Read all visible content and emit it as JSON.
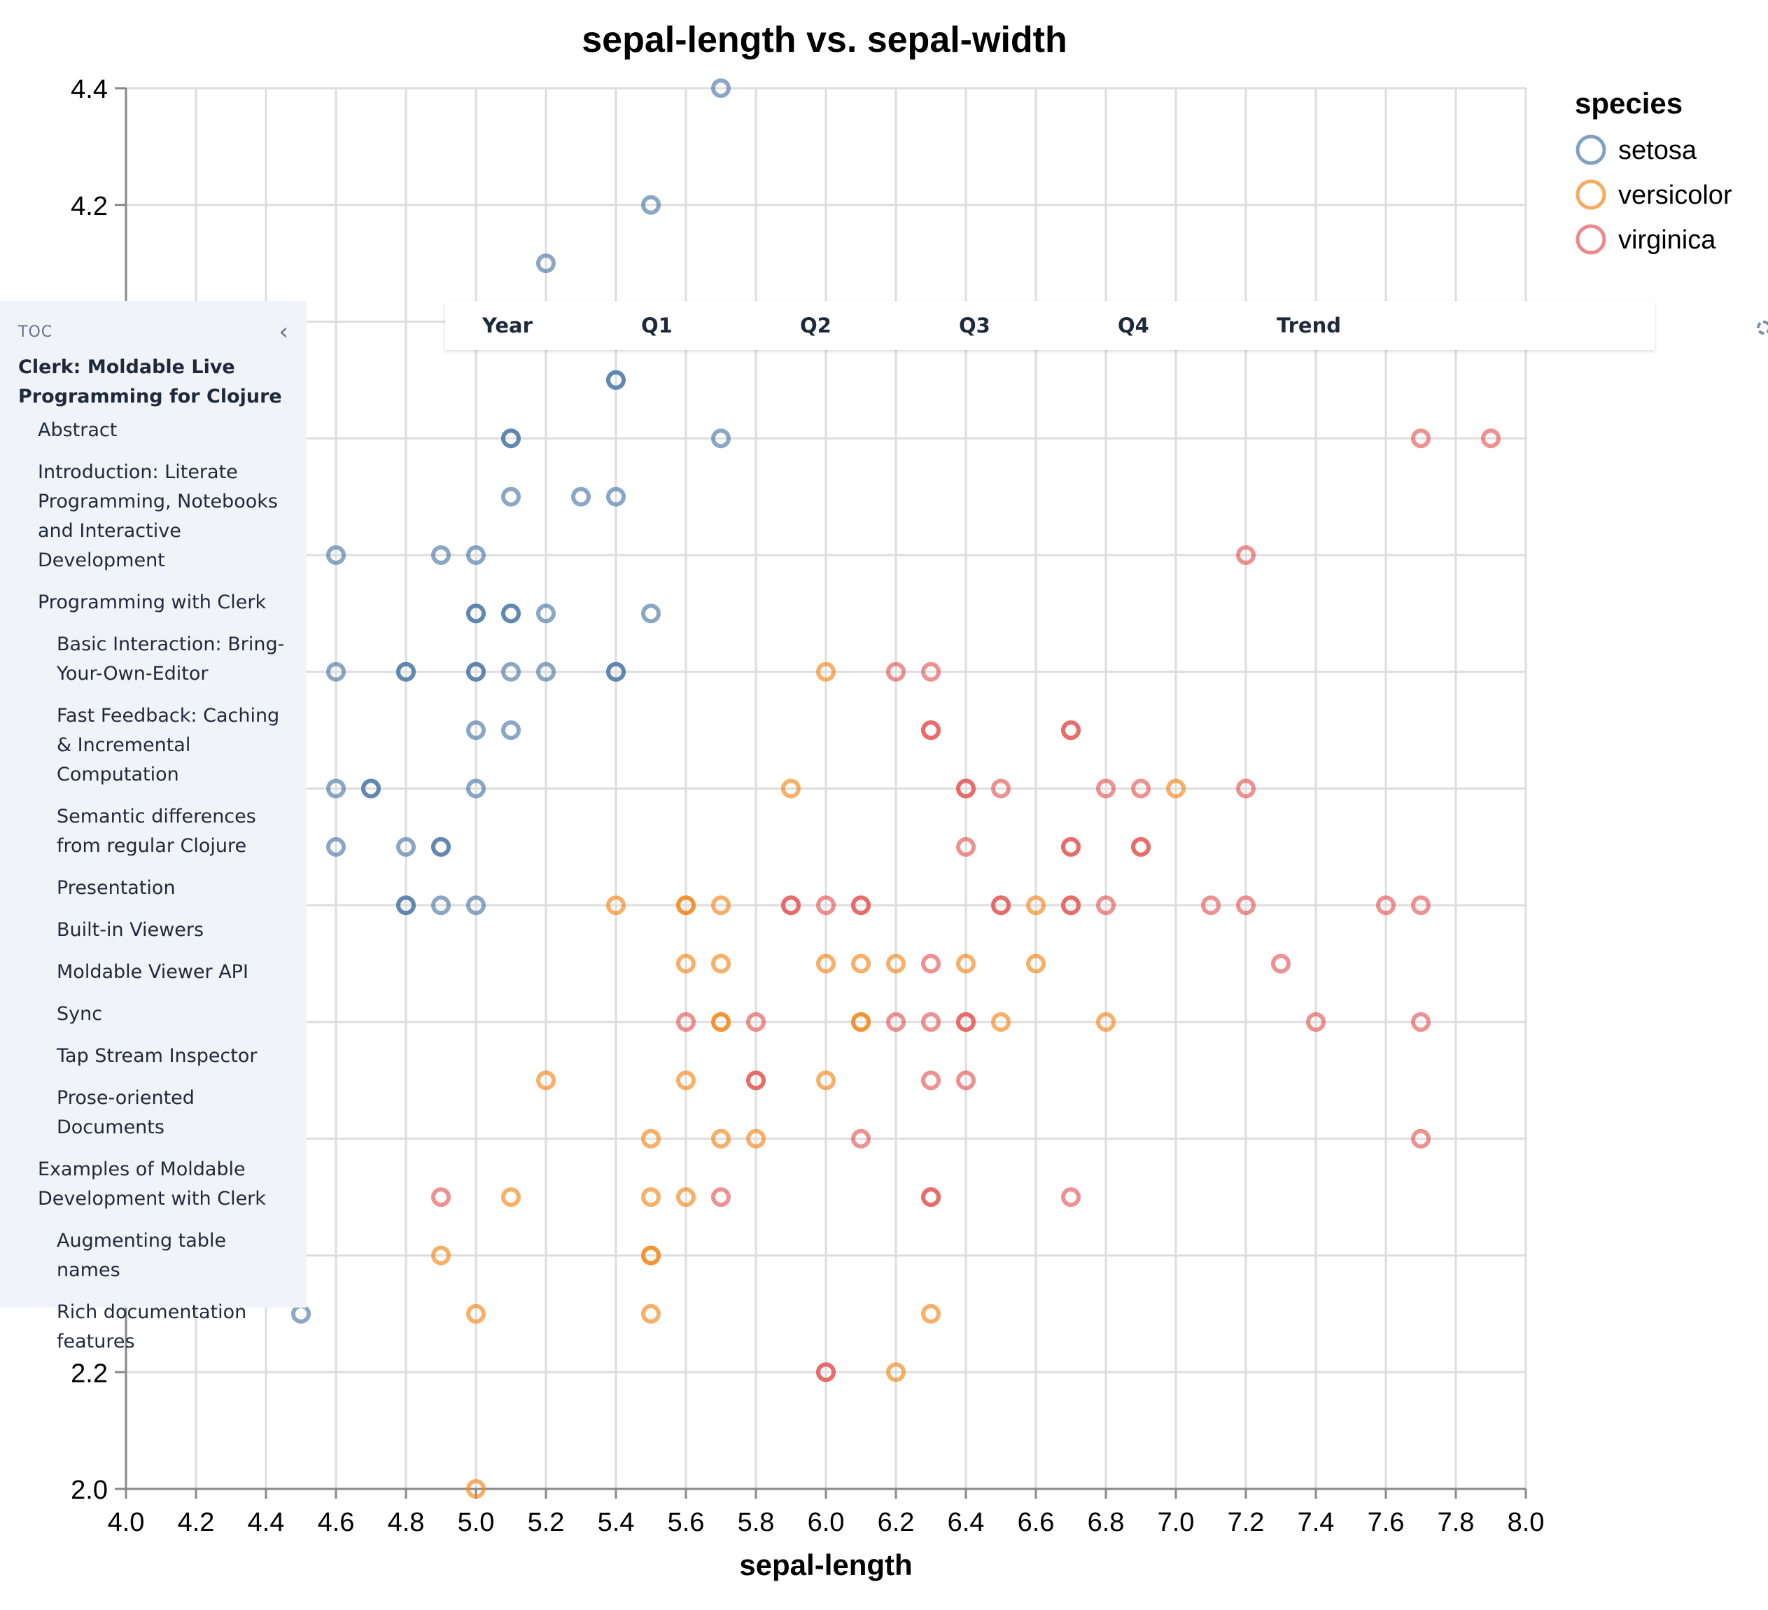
{
  "chart_data": {
    "type": "scatter",
    "title": "sepal-length vs. sepal-width",
    "xlabel": "sepal-length",
    "ylabel": "",
    "xlim": [
      4.0,
      8.0
    ],
    "ylim": [
      2.0,
      4.4
    ],
    "x_ticks": [
      "4.0",
      "4.2",
      "4.4",
      "4.6",
      "4.8",
      "5.0",
      "5.2",
      "5.4",
      "5.6",
      "5.8",
      "6.0",
      "6.2",
      "6.4",
      "6.6",
      "6.8",
      "7.0",
      "7.2",
      "7.4",
      "7.6",
      "7.8",
      "8.0"
    ],
    "y_ticks": [
      "2.0",
      "2.2",
      "4.2",
      "4.4"
    ],
    "grid": true,
    "legend": {
      "title": "species",
      "position": "top-right"
    },
    "series": [
      {
        "name": "setosa",
        "color": "#4c78a8",
        "points": [
          [
            5.7,
            4.4
          ],
          [
            5.5,
            4.2
          ],
          [
            5.2,
            4.1
          ],
          [
            5.4,
            3.9
          ],
          [
            5.4,
            3.9
          ],
          [
            5.1,
            3.8
          ],
          [
            5.1,
            3.8
          ],
          [
            5.7,
            3.8
          ],
          [
            5.1,
            3.7
          ],
          [
            5.3,
            3.7
          ],
          [
            5.4,
            3.7
          ],
          [
            4.6,
            3.6
          ],
          [
            4.9,
            3.6
          ],
          [
            5.0,
            3.6
          ],
          [
            5.0,
            3.5
          ],
          [
            5.0,
            3.5
          ],
          [
            5.1,
            3.5
          ],
          [
            5.1,
            3.5
          ],
          [
            5.2,
            3.5
          ],
          [
            5.5,
            3.5
          ],
          [
            4.6,
            3.4
          ],
          [
            4.8,
            3.4
          ],
          [
            4.8,
            3.4
          ],
          [
            5.0,
            3.4
          ],
          [
            5.0,
            3.4
          ],
          [
            5.1,
            3.4
          ],
          [
            5.2,
            3.4
          ],
          [
            5.4,
            3.4
          ],
          [
            5.4,
            3.4
          ],
          [
            5.0,
            3.3
          ],
          [
            5.1,
            3.3
          ],
          [
            4.4,
            3.2
          ],
          [
            4.6,
            3.2
          ],
          [
            4.7,
            3.2
          ],
          [
            4.7,
            3.2
          ],
          [
            5.0,
            3.2
          ],
          [
            4.4,
            3.1
          ],
          [
            4.6,
            3.1
          ],
          [
            4.8,
            3.1
          ],
          [
            4.9,
            3.1
          ],
          [
            4.9,
            3.1
          ],
          [
            4.8,
            3.0
          ],
          [
            4.8,
            3.0
          ],
          [
            4.9,
            3.0
          ],
          [
            5.0,
            3.0
          ],
          [
            4.5,
            2.3
          ]
        ]
      },
      {
        "name": "versicolor",
        "color": "#f58518",
        "points": [
          [
            6.0,
            3.4
          ],
          [
            5.9,
            3.2
          ],
          [
            7.0,
            3.2
          ],
          [
            5.4,
            3.0
          ],
          [
            5.6,
            3.0
          ],
          [
            5.6,
            3.0
          ],
          [
            5.7,
            3.0
          ],
          [
            6.6,
            3.0
          ],
          [
            5.6,
            2.9
          ],
          [
            5.7,
            2.9
          ],
          [
            6.0,
            2.9
          ],
          [
            6.1,
            2.9
          ],
          [
            6.2,
            2.9
          ],
          [
            6.4,
            2.9
          ],
          [
            6.6,
            2.9
          ],
          [
            5.7,
            2.8
          ],
          [
            5.7,
            2.8
          ],
          [
            6.1,
            2.8
          ],
          [
            6.1,
            2.8
          ],
          [
            6.5,
            2.8
          ],
          [
            6.8,
            2.8
          ],
          [
            5.2,
            2.7
          ],
          [
            5.6,
            2.7
          ],
          [
            6.0,
            2.7
          ],
          [
            5.5,
            2.6
          ],
          [
            5.7,
            2.6
          ],
          [
            5.8,
            2.6
          ],
          [
            5.1,
            2.5
          ],
          [
            5.5,
            2.5
          ],
          [
            5.6,
            2.5
          ],
          [
            4.9,
            2.4
          ],
          [
            5.5,
            2.4
          ],
          [
            5.5,
            2.4
          ],
          [
            5.0,
            2.3
          ],
          [
            5.5,
            2.3
          ],
          [
            6.3,
            2.3
          ],
          [
            6.2,
            2.2
          ],
          [
            5.0,
            2.0
          ]
        ]
      },
      {
        "name": "virginica",
        "color": "#e45756",
        "points": [
          [
            7.7,
            3.8
          ],
          [
            7.9,
            3.8
          ],
          [
            7.2,
            3.6
          ],
          [
            6.2,
            3.4
          ],
          [
            6.3,
            3.4
          ],
          [
            6.3,
            3.3
          ],
          [
            6.3,
            3.3
          ],
          [
            6.7,
            3.3
          ],
          [
            6.7,
            3.3
          ],
          [
            6.4,
            3.2
          ],
          [
            6.4,
            3.2
          ],
          [
            6.5,
            3.2
          ],
          [
            6.8,
            3.2
          ],
          [
            6.9,
            3.2
          ],
          [
            7.2,
            3.2
          ],
          [
            6.4,
            3.1
          ],
          [
            6.7,
            3.1
          ],
          [
            6.7,
            3.1
          ],
          [
            6.9,
            3.1
          ],
          [
            6.9,
            3.1
          ],
          [
            5.9,
            3.0
          ],
          [
            5.9,
            3.0
          ],
          [
            6.0,
            3.0
          ],
          [
            6.1,
            3.0
          ],
          [
            6.1,
            3.0
          ],
          [
            6.5,
            3.0
          ],
          [
            6.5,
            3.0
          ],
          [
            6.7,
            3.0
          ],
          [
            6.7,
            3.0
          ],
          [
            6.8,
            3.0
          ],
          [
            7.1,
            3.0
          ],
          [
            7.2,
            3.0
          ],
          [
            7.6,
            3.0
          ],
          [
            7.7,
            3.0
          ],
          [
            6.3,
            2.9
          ],
          [
            7.3,
            2.9
          ],
          [
            5.6,
            2.8
          ],
          [
            5.8,
            2.8
          ],
          [
            6.2,
            2.8
          ],
          [
            6.3,
            2.8
          ],
          [
            6.4,
            2.8
          ],
          [
            6.4,
            2.8
          ],
          [
            7.4,
            2.8
          ],
          [
            7.7,
            2.8
          ],
          [
            5.8,
            2.7
          ],
          [
            5.8,
            2.7
          ],
          [
            6.3,
            2.7
          ],
          [
            6.4,
            2.7
          ],
          [
            6.1,
            2.6
          ],
          [
            7.7,
            2.6
          ],
          [
            4.9,
            2.5
          ],
          [
            5.7,
            2.5
          ],
          [
            6.3,
            2.5
          ],
          [
            6.3,
            2.5
          ],
          [
            6.7,
            2.5
          ],
          [
            6.0,
            2.2
          ],
          [
            6.0,
            2.2
          ]
        ]
      }
    ]
  },
  "toc": {
    "label": "TOC",
    "collapse_icon": "chevron-left-icon",
    "title": "Clerk: Moldable Live Programming for Clojure",
    "items": [
      {
        "label": "Abstract",
        "level": 1
      },
      {
        "label": "Introduction: Literate Programming, Notebooks and Interactive Development",
        "level": 1
      },
      {
        "label": "Programming with Clerk",
        "level": 1
      },
      {
        "label": "Basic Interaction: Bring-Your-Own-Editor",
        "level": 2
      },
      {
        "label": "Fast Feedback: Caching & Incremental Computation",
        "level": 2
      },
      {
        "label": "Semantic differences from regular Clojure",
        "level": 2
      },
      {
        "label": "Presentation",
        "level": 2
      },
      {
        "label": "Built-in Viewers",
        "level": 2
      },
      {
        "label": "Moldable Viewer API",
        "level": 2
      },
      {
        "label": "Sync",
        "level": 2
      },
      {
        "label": "Tap Stream Inspector",
        "level": 2
      },
      {
        "label": "Prose-oriented Documents",
        "level": 2
      },
      {
        "label": "Examples of Moldable Development with Clerk",
        "level": 1
      },
      {
        "label": "Augmenting table names",
        "level": 2
      },
      {
        "label": "Rich documentation features",
        "level": 2
      }
    ]
  },
  "table_header": {
    "columns": [
      "Year",
      "Q1",
      "Q2",
      "Q3",
      "Q4",
      "Trend"
    ]
  }
}
